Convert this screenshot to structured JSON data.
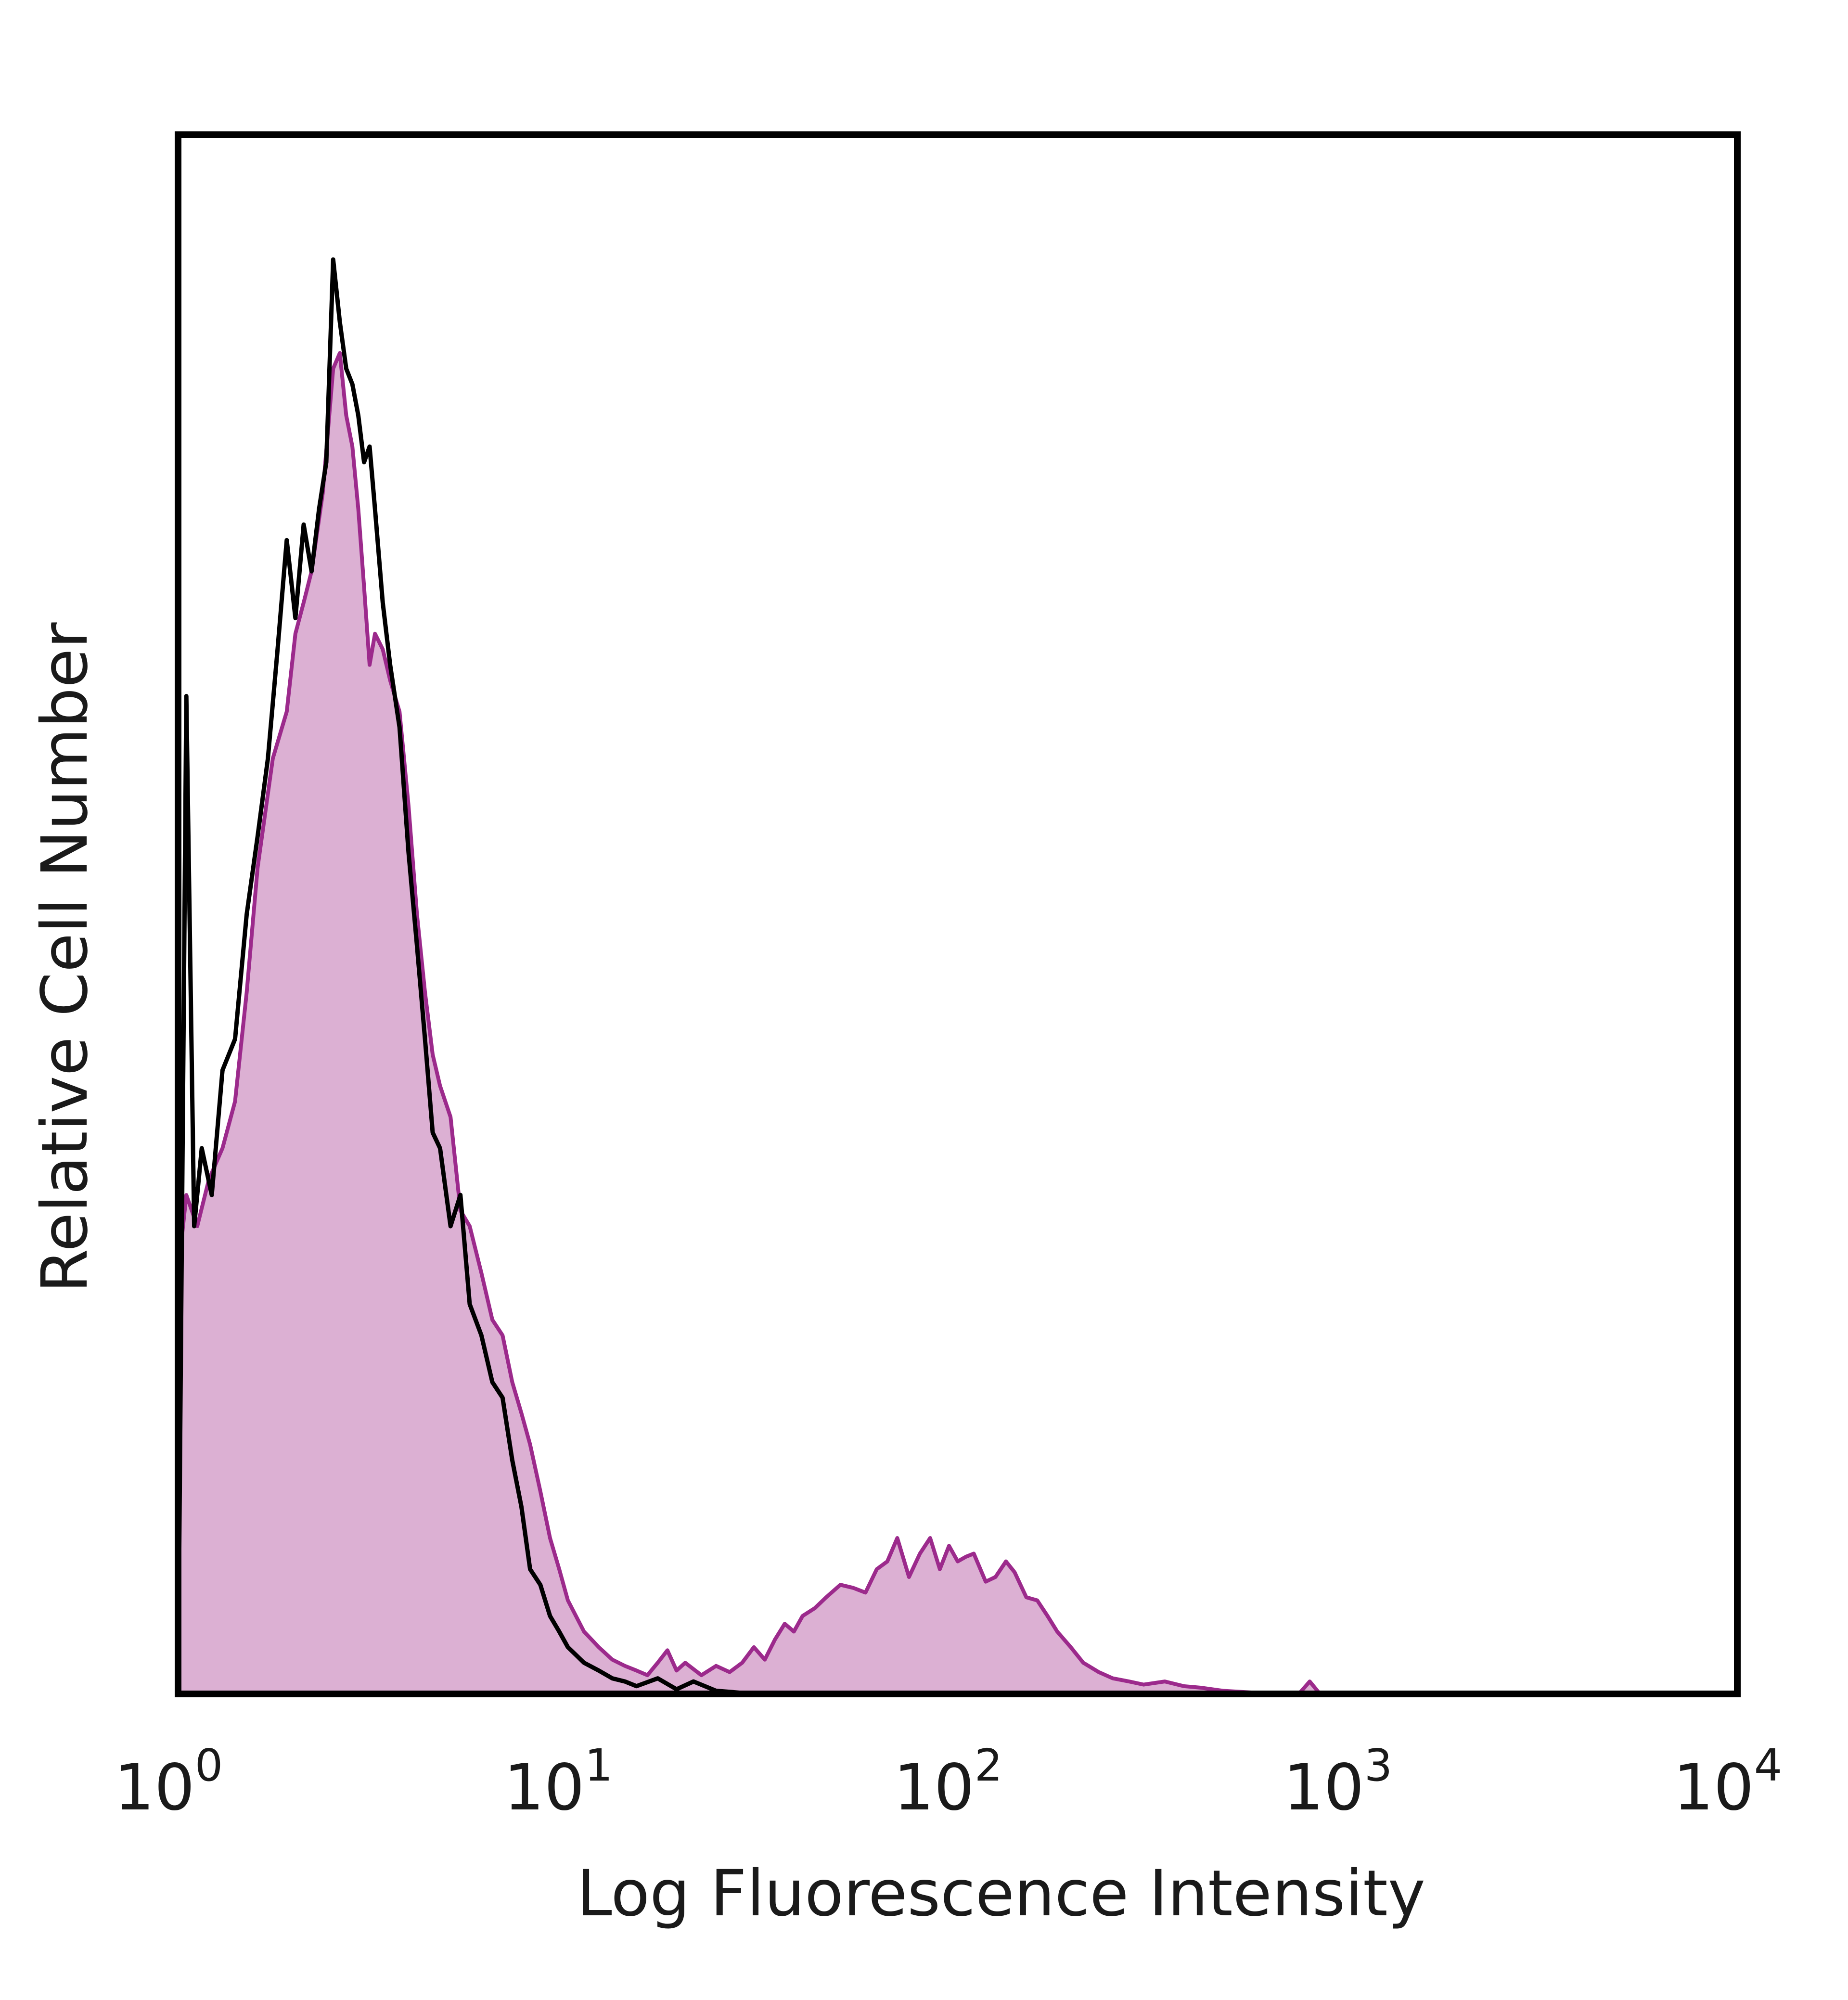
{
  "chart_data": {
    "type": "area",
    "title": "",
    "xlabel": "Log Fluorescence Intensity",
    "ylabel": "Relative Cell Number",
    "x_scale": "log",
    "xlim": [
      1,
      10000
    ],
    "ylim": [
      0,
      1
    ],
    "grid": false,
    "x_ticks": [
      {
        "base": "10",
        "exp": "0"
      },
      {
        "base": "10",
        "exp": "1"
      },
      {
        "base": "10",
        "exp": "2"
      },
      {
        "base": "10",
        "exp": "3"
      },
      {
        "base": "10",
        "exp": "4"
      }
    ],
    "colors": {
      "filled": "#9c2a8c",
      "fill": "#dcb0d3",
      "outline": "#000000"
    },
    "series": [
      {
        "style": "filled",
        "x": [
          1.0,
          1.05,
          1.12,
          1.2,
          1.3,
          1.4,
          1.5,
          1.6,
          1.75,
          1.9,
          2.0,
          2.1,
          2.2,
          2.35,
          2.5,
          2.6,
          2.7,
          2.8,
          2.9,
          3.0,
          3.1,
          3.2,
          3.35,
          3.5,
          3.7,
          3.9,
          4.1,
          4.3,
          4.5,
          4.7,
          5.0,
          5.3,
          5.6,
          6.0,
          6.4,
          6.8,
          7.2,
          7.6,
          8.0,
          8.5,
          9.0,
          9.5,
          10.0,
          11.0,
          12.0,
          13.0,
          14.0,
          15.0,
          16.0,
          17.0,
          18.0,
          19.0,
          20.0,
          22.0,
          24.0,
          26.0,
          28.0,
          30.0,
          32.0,
          34.0,
          36.0,
          38.0,
          40.0,
          43.0,
          46.0,
          50.0,
          54.0,
          58.0,
          62.0,
          66.0,
          70.0,
          75.0,
          80.0,
          85.0,
          90.0,
          95.0,
          100.0,
          105.0,
          110.0,
          118.0,
          125.0,
          133.0,
          140.0,
          150.0,
          160.0,
          170.0,
          180.0,
          195.0,
          210.0,
          230.0,
          250.0,
          275.0,
          300.0,
          340.0,
          380.0,
          420.0,
          480.0,
          560.0,
          650.0,
          750.0,
          800.0,
          850.0,
          1000.0,
          10000.0
        ],
        "y": [
          0.27,
          0.32,
          0.3,
          0.33,
          0.35,
          0.38,
          0.45,
          0.53,
          0.6,
          0.63,
          0.68,
          0.7,
          0.72,
          0.77,
          0.85,
          0.86,
          0.82,
          0.8,
          0.76,
          0.71,
          0.66,
          0.68,
          0.67,
          0.65,
          0.63,
          0.57,
          0.5,
          0.45,
          0.41,
          0.39,
          0.37,
          0.31,
          0.3,
          0.27,
          0.24,
          0.23,
          0.2,
          0.18,
          0.16,
          0.13,
          0.1,
          0.08,
          0.06,
          0.04,
          0.03,
          0.022,
          0.018,
          0.015,
          0.012,
          0.02,
          0.028,
          0.015,
          0.02,
          0.012,
          0.018,
          0.014,
          0.02,
          0.03,
          0.022,
          0.035,
          0.045,
          0.04,
          0.05,
          0.055,
          0.062,
          0.07,
          0.068,
          0.065,
          0.08,
          0.085,
          0.1,
          0.075,
          0.09,
          0.1,
          0.08,
          0.095,
          0.085,
          0.088,
          0.09,
          0.072,
          0.075,
          0.085,
          0.078,
          0.062,
          0.06,
          0.05,
          0.04,
          0.03,
          0.02,
          0.014,
          0.01,
          0.008,
          0.006,
          0.008,
          0.005,
          0.004,
          0.002,
          0.001,
          0.0,
          0.0,
          0.008,
          0.0,
          0.0,
          0.0
        ]
      },
      {
        "style": "outline",
        "x": [
          1.0,
          1.05,
          1.1,
          1.15,
          1.22,
          1.3,
          1.4,
          1.5,
          1.6,
          1.7,
          1.8,
          1.9,
          2.0,
          2.1,
          2.2,
          2.3,
          2.4,
          2.5,
          2.6,
          2.7,
          2.8,
          2.9,
          3.0,
          3.1,
          3.2,
          3.35,
          3.5,
          3.7,
          3.9,
          4.1,
          4.3,
          4.5,
          4.7,
          5.0,
          5.3,
          5.6,
          6.0,
          6.4,
          6.8,
          7.2,
          7.6,
          8.0,
          8.5,
          9.0,
          9.5,
          10.0,
          11.0,
          12.0,
          13.0,
          14.0,
          15.0,
          17.0,
          19.0,
          21.0,
          24.0,
          27.0,
          30.0,
          35.0,
          40.0,
          50.0,
          10000.0
        ],
        "y": [
          0.0,
          0.64,
          0.3,
          0.35,
          0.32,
          0.4,
          0.42,
          0.5,
          0.55,
          0.6,
          0.67,
          0.74,
          0.69,
          0.75,
          0.72,
          0.76,
          0.79,
          0.92,
          0.88,
          0.85,
          0.84,
          0.82,
          0.79,
          0.8,
          0.76,
          0.7,
          0.66,
          0.62,
          0.54,
          0.48,
          0.42,
          0.36,
          0.35,
          0.3,
          0.32,
          0.25,
          0.23,
          0.2,
          0.19,
          0.15,
          0.12,
          0.08,
          0.07,
          0.05,
          0.04,
          0.03,
          0.02,
          0.015,
          0.01,
          0.008,
          0.005,
          0.01,
          0.003,
          0.008,
          0.002,
          0.001,
          0.0,
          0.0,
          0.0,
          0.0,
          0.0
        ]
      }
    ]
  }
}
